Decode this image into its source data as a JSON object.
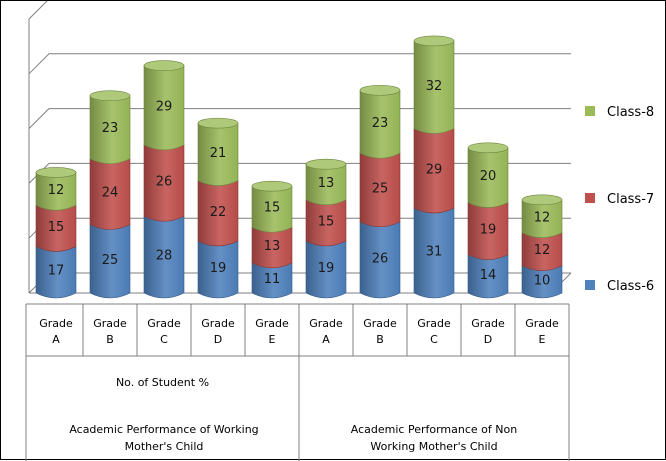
{
  "chart_data": {
    "type": "bar",
    "stacked": true,
    "three_d": true,
    "categories": [
      "Grade A",
      "Grade B",
      "Grade C",
      "Grade D",
      "Grade E",
      "Grade A",
      "Grade B",
      "Grade C",
      "Grade D",
      "Grade E"
    ],
    "category_lines": [
      [
        "Grade",
        "A"
      ],
      [
        "Grade",
        "B"
      ],
      [
        "Grade",
        "C"
      ],
      [
        "Grade",
        "D"
      ],
      [
        "Grade",
        "E"
      ],
      [
        "Grade",
        "A"
      ],
      [
        "Grade",
        "B"
      ],
      [
        "Grade",
        "C"
      ],
      [
        "Grade",
        "D"
      ],
      [
        "Grade",
        "E"
      ]
    ],
    "series": [
      {
        "name": "Class-6",
        "color": "#4f81bd",
        "values": [
          17,
          25,
          28,
          19,
          11,
          19,
          26,
          31,
          14,
          10
        ]
      },
      {
        "name": "Class-7",
        "color": "#c0504d",
        "values": [
          15,
          24,
          26,
          22,
          13,
          15,
          25,
          29,
          19,
          12
        ]
      },
      {
        "name": "Class-8",
        "color": "#9bbb59",
        "values": [
          12,
          23,
          29,
          21,
          15,
          13,
          23,
          32,
          20,
          12
        ]
      }
    ],
    "legend_order": [
      "Class-8",
      "Class-7",
      "Class-6"
    ],
    "legend_position": "right",
    "ylim": [
      0,
      100
    ],
    "grid": true,
    "groups": [
      {
        "lines": [
          "Academic Performance of Working",
          "Mother's Child"
        ],
        "span": [
          0,
          4
        ]
      },
      {
        "lines": [
          "Academic Performance of Non",
          "Working Mother's Child"
        ],
        "span": [
          5,
          9
        ]
      }
    ],
    "axis_subtitle": "No. of Student %"
  }
}
